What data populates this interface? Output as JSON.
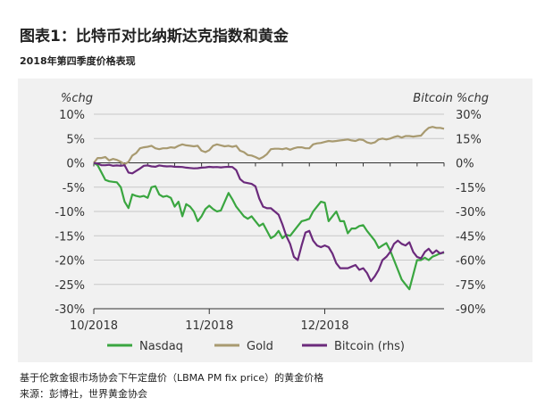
{
  "header": {
    "title": "图表1：比特币对比纳斯达克指数和黄金",
    "subtitle": "2018年第四季度价格表现"
  },
  "footer": {
    "note": "基于伦敦金银市场协会下午定盘价（LBMA PM fix price）的黄金价格",
    "source": "来源：彭博社，世界黄金协会"
  },
  "colors": {
    "nasdaq": "#3aa640",
    "gold": "#a89a70",
    "bitcoin": "#6b2a7c",
    "grid": "#c8c8c8",
    "panel": "#f1f1f1"
  },
  "chart_data": {
    "type": "line",
    "left_axis_label": "%chg",
    "right_axis_label": "Bitcoin %chg",
    "left_ylim": [
      -30,
      10
    ],
    "right_ylim": [
      -90,
      30
    ],
    "left_ticks": [
      "10%",
      "5%",
      "0%",
      "-5%",
      "-10%",
      "-15%",
      "-20%",
      "-25%",
      "-30%"
    ],
    "right_ticks": [
      "30%",
      "15%",
      "0%",
      "-15%",
      "-30%",
      "-45%",
      "-60%",
      "-75%",
      "-90%"
    ],
    "x_ticks": [
      "10/2018",
      "11/2018",
      "12/2018"
    ],
    "x_tick_positions": [
      0,
      30,
      60
    ],
    "x_range": [
      0,
      91
    ],
    "legend_position": "bottom",
    "series": [
      {
        "name": "Nasdaq",
        "axis": "left",
        "x": [
          0,
          1,
          2,
          3,
          4,
          5,
          6,
          7,
          8,
          9,
          10,
          11,
          12,
          13,
          14,
          15,
          16,
          17,
          18,
          19,
          20,
          21,
          22,
          23,
          24,
          25,
          26,
          27,
          28,
          29,
          30,
          31,
          32,
          33,
          34,
          35,
          36,
          37,
          38,
          39,
          40,
          41,
          42,
          43,
          44,
          45,
          46,
          47,
          48,
          49,
          50,
          51,
          52,
          53,
          54,
          55,
          56,
          57,
          58,
          59,
          60,
          61,
          62,
          63,
          64,
          65,
          66,
          67,
          68,
          69,
          70,
          71,
          72,
          73,
          74,
          75,
          76,
          77,
          78,
          79,
          80,
          81,
          82,
          83,
          84,
          85,
          86,
          87,
          88,
          89,
          90,
          91
        ],
        "values": [
          0,
          -0.5,
          -2,
          -3.5,
          -3.8,
          -3.9,
          -4,
          -5,
          -8,
          -9.3,
          -6.5,
          -6.8,
          -7,
          -6.8,
          -7.2,
          -5,
          -4.8,
          -6.5,
          -7,
          -6.8,
          -7.2,
          -9,
          -8,
          -11,
          -8.5,
          -9,
          -10,
          -12,
          -11,
          -9.5,
          -8.8,
          -9.5,
          -10,
          -9.8,
          -8,
          -6.2,
          -7.5,
          -9,
          -10,
          -11,
          -11.5,
          -11,
          -12,
          -13,
          -12.5,
          -14,
          -15.5,
          -15,
          -14,
          -15.5,
          -14.8,
          -15,
          -14,
          -13,
          -12,
          -11.8,
          -11.5,
          -10,
          -9,
          -8,
          -8.2,
          -12,
          -11,
          -10,
          -12,
          -12,
          -14.5,
          -13.5,
          -13.5,
          -13,
          -12.8,
          -14,
          -15,
          -16,
          -17.5,
          -17,
          -16.5,
          -18,
          -20,
          -22,
          -24,
          -25,
          -26,
          -23,
          -20,
          -20,
          -19.5,
          -20,
          -19.3,
          -19,
          -18.6,
          -18.5
        ]
      },
      {
        "name": "Gold",
        "axis": "left",
        "x": [
          0,
          1,
          2,
          3,
          4,
          5,
          6,
          7,
          8,
          9,
          10,
          11,
          12,
          13,
          14,
          15,
          16,
          17,
          18,
          19,
          20,
          21,
          22,
          23,
          24,
          25,
          26,
          27,
          28,
          29,
          30,
          31,
          32,
          33,
          34,
          35,
          36,
          37,
          38,
          39,
          40,
          41,
          42,
          43,
          44,
          45,
          46,
          47,
          48,
          49,
          50,
          51,
          52,
          53,
          54,
          55,
          56,
          57,
          58,
          59,
          60,
          61,
          62,
          63,
          64,
          65,
          66,
          67,
          68,
          69,
          70,
          71,
          72,
          73,
          74,
          75,
          76,
          77,
          78,
          79,
          80,
          81,
          82,
          83,
          84,
          85,
          86,
          87,
          88,
          89,
          90,
          91
        ],
        "values": [
          0,
          1,
          1,
          1.2,
          0.5,
          0.8,
          0.6,
          0.2,
          -0.3,
          0.2,
          1.5,
          2,
          3,
          3.2,
          3.3,
          3.5,
          3,
          2.8,
          3,
          3,
          3.2,
          3.1,
          3.5,
          3.8,
          3.6,
          3.5,
          3.4,
          3.5,
          2.5,
          2.2,
          2.6,
          3.5,
          3.8,
          3.6,
          3.4,
          3.5,
          3.3,
          3.5,
          2.5,
          2.2,
          1.6,
          1.5,
          1.2,
          0.8,
          1.2,
          1.8,
          2.8,
          2.9,
          2.9,
          2.8,
          3,
          2.7,
          3,
          3.2,
          3.2,
          3,
          3,
          3.8,
          4,
          4.1,
          4.3,
          4.5,
          4.4,
          4.5,
          4.6,
          4.7,
          4.8,
          4.6,
          4.5,
          4.8,
          4.7,
          4.2,
          4,
          4.2,
          4.8,
          5,
          4.8,
          5,
          5.3,
          5.5,
          5.2,
          5.5,
          5.5,
          5.4,
          5.5,
          5.6,
          6.5,
          7.2,
          7.4,
          7.2,
          7.2,
          7
        ]
      },
      {
        "name": "Bitcoin (rhs)",
        "axis": "right",
        "x": [
          0,
          1,
          2,
          3,
          4,
          5,
          6,
          7,
          8,
          9,
          10,
          11,
          12,
          13,
          14,
          15,
          16,
          17,
          18,
          19,
          20,
          21,
          22,
          23,
          24,
          25,
          26,
          27,
          28,
          29,
          30,
          31,
          32,
          33,
          34,
          35,
          36,
          37,
          38,
          39,
          40,
          41,
          42,
          43,
          44,
          45,
          46,
          47,
          48,
          49,
          50,
          51,
          52,
          53,
          54,
          55,
          56,
          57,
          58,
          59,
          60,
          61,
          62,
          63,
          64,
          65,
          66,
          67,
          68,
          69,
          70,
          71,
          72,
          73,
          74,
          75,
          76,
          77,
          78,
          79,
          80,
          81,
          82,
          83,
          84,
          85,
          86,
          87,
          88,
          89,
          90,
          91
        ],
        "values": [
          0,
          -0.5,
          -1.5,
          -1.5,
          -1.2,
          -1.8,
          -1.6,
          -1.8,
          -1.5,
          -6,
          -6.5,
          -5,
          -3.5,
          -1.8,
          -1.6,
          -2.2,
          -2.4,
          -1.6,
          -2,
          -2.2,
          -2.1,
          -2.4,
          -2.5,
          -2.6,
          -3,
          -3.2,
          -3.4,
          -3.3,
          -3,
          -2.8,
          -2.5,
          -2.7,
          -2.6,
          -2.8,
          -2.6,
          -2.5,
          -2.6,
          -4.5,
          -10,
          -12,
          -12.5,
          -13,
          -14.5,
          -22,
          -27,
          -28,
          -28,
          -30,
          -32,
          -38,
          -45,
          -50,
          -58,
          -60,
          -51,
          -43,
          -42,
          -48,
          -51,
          -52,
          -51,
          -52,
          -56,
          -62,
          -65,
          -65,
          -65,
          -64,
          -63,
          -66,
          -65,
          -68,
          -73,
          -70,
          -66,
          -60,
          -58,
          -55,
          -50,
          -48,
          -50,
          -51,
          -49,
          -55,
          -58,
          -59,
          -55,
          -53,
          -56,
          -54,
          -56,
          -55
        ]
      }
    ]
  }
}
